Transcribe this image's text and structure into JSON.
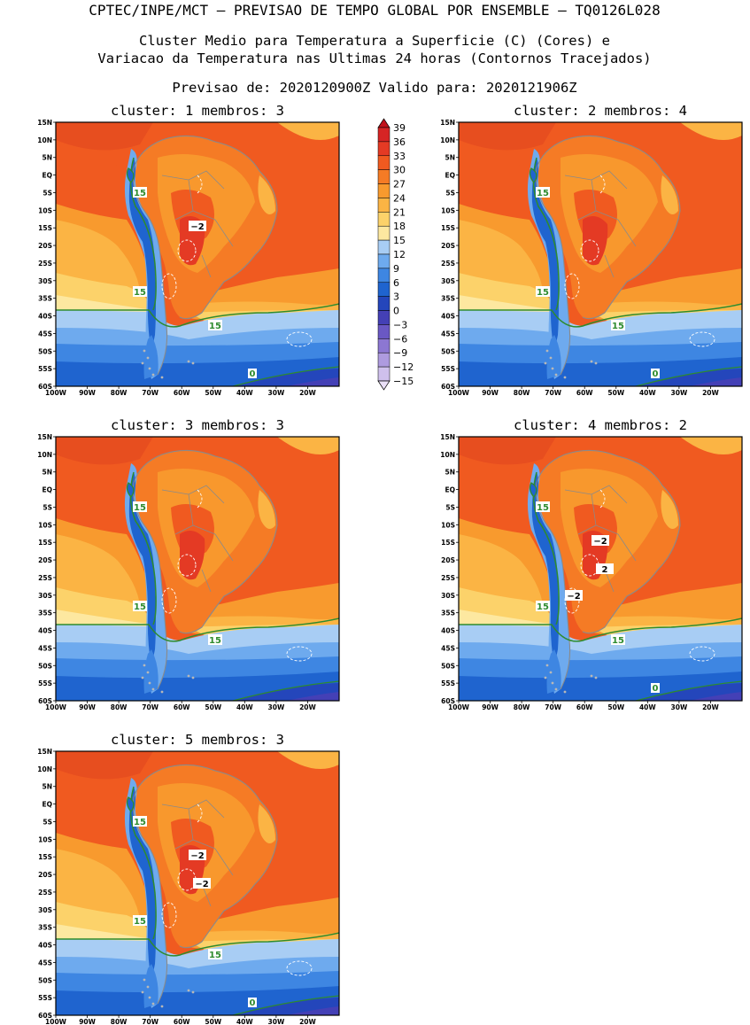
{
  "header": {
    "line1": "CPTEC/INPE/MCT — PREVISAO DE TEMPO GLOBAL POR ENSEMBLE — TQ0126L028",
    "line2": "Cluster Medio para Temperatura a Superficie (C) (Cores) e",
    "line3": "Variacao da Temperatura nas Ultimas 24 horas (Contornos Tracejados)",
    "line4": "Previsao de: 2020120900Z   Valido para: 2020121906Z"
  },
  "icons": {
    "map": "south-america-temperature-map"
  },
  "colors": {
    "frame": "#000000",
    "coast": "#8a8a8a",
    "contour15": "#2e8b2e",
    "contourDiff": "#ffffff"
  },
  "chart_data": {
    "type": "heatmap",
    "panels": [
      {
        "title": "cluster: 1  membros: 3",
        "labels15": [
          "15",
          "15",
          "15"
        ],
        "label0": "0",
        "diffLabels": [
          "−2"
        ]
      },
      {
        "title": "cluster: 2  membros: 4",
        "labels15": [
          "15",
          "15",
          "15"
        ],
        "label0": "0",
        "diffLabels": []
      },
      {
        "title": "cluster: 3  membros: 3",
        "labels15": [
          "15",
          "15",
          "15"
        ],
        "label0": "",
        "diffLabels": []
      },
      {
        "title": "cluster: 4  membros: 2",
        "labels15": [
          "15",
          "15",
          "15"
        ],
        "label0": "0",
        "diffLabels": [
          "−2",
          "2",
          "−2"
        ]
      },
      {
        "title": "cluster: 5  membros: 3",
        "labels15": [
          "15",
          "15",
          "15"
        ],
        "label0": "0",
        "diffLabels": [
          "−2",
          "−2"
        ]
      }
    ],
    "x_ticks": [
      "100W",
      "90W",
      "80W",
      "70W",
      "60W",
      "50W",
      "40W",
      "30W",
      "20W"
    ],
    "y_ticks": [
      "15N",
      "10N",
      "5N",
      "EQ",
      "5S",
      "10S",
      "15S",
      "20S",
      "25S",
      "30S",
      "35S",
      "40S",
      "45S",
      "50S",
      "55S",
      "60S"
    ],
    "xlim": [
      -100,
      -10
    ],
    "ylim": [
      -60,
      15
    ],
    "colorbar": {
      "levels": [
        "39",
        "36",
        "33",
        "30",
        "27",
        "24",
        "21",
        "18",
        "15",
        "12",
        "9",
        "6",
        "3",
        "0",
        "−3",
        "−6",
        "−9",
        "−12",
        "−15"
      ],
      "colors": [
        "#c0121b",
        "#d62424",
        "#e43a24",
        "#f05a20",
        "#f57b25",
        "#f89a2e",
        "#fbb444",
        "#fcd26a",
        "#fde8a0",
        "#a8cdf4",
        "#6eaaee",
        "#3e86e2",
        "#1f64cf",
        "#2446bb",
        "#4440b6",
        "#6a58c4",
        "#8c77d2",
        "#ae9bdf",
        "#cfc0ec",
        "#eae0f7"
      ]
    }
  }
}
